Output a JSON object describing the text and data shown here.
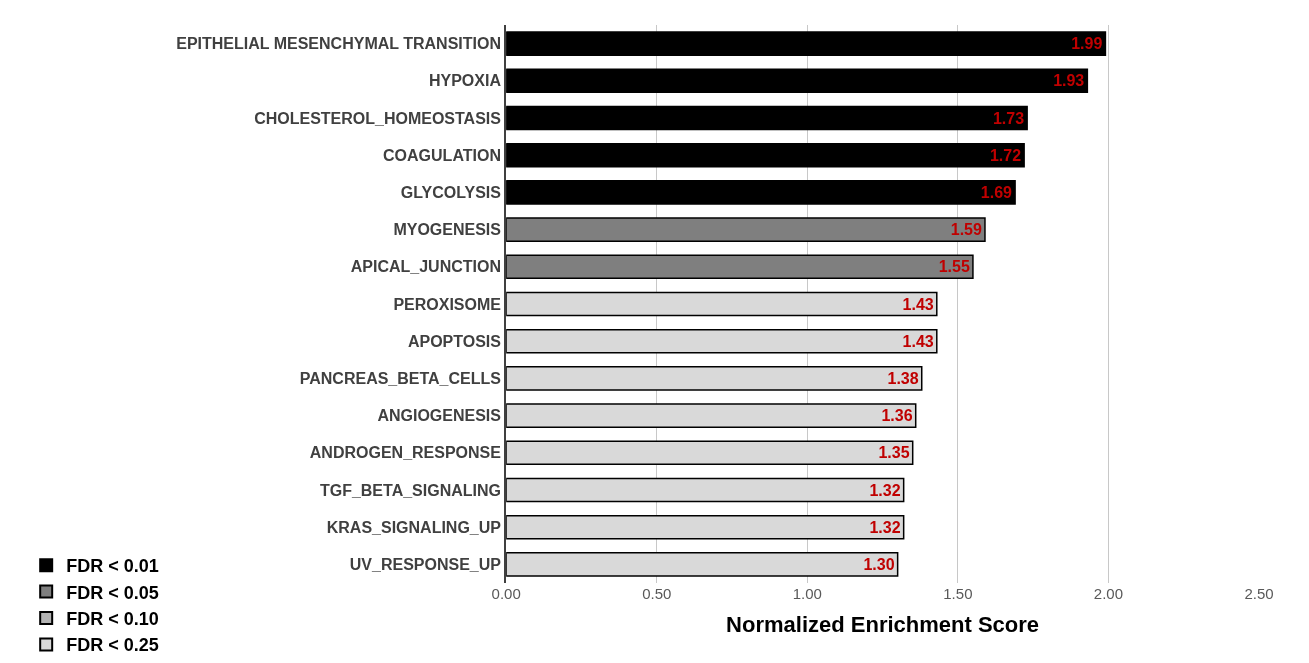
{
  "chart_data": {
    "type": "bar",
    "orientation": "horizontal",
    "xlabel": "Normalized Enrichment Score",
    "categories": [
      "EPITHELIAL MESENCHYMAL TRANSITION",
      "HYPOXIA",
      "CHOLESTEROL_HOMEOSTASIS",
      "COAGULATION",
      "GLYCOLYSIS",
      "MYOGENESIS",
      "APICAL_JUNCTION",
      "PEROXISOME",
      "APOPTOSIS",
      "PANCREAS_BETA_CELLS",
      "ANGIOGENESIS",
      "ANDROGEN_RESPONSE",
      "TGF_BETA_SIGNALING",
      "KRAS_SIGNALING_UP",
      "UV_RESPONSE_UP"
    ],
    "series": [
      {
        "name": "FDR < 0.01",
        "color": "#000000",
        "values": [
          1.99,
          1.93,
          1.73,
          1.72,
          1.69,
          null,
          null,
          null,
          null,
          null,
          null,
          null,
          null,
          null,
          null
        ],
        "value_labels": [
          "1.99",
          "1.93",
          "1.73",
          "1.72",
          "1.69",
          null,
          null,
          null,
          null,
          null,
          null,
          null,
          null,
          null,
          null
        ]
      },
      {
        "name": "FDR < 0.05",
        "color": "#7f7f7f",
        "values": [
          null,
          null,
          null,
          null,
          null,
          1.59,
          1.55,
          null,
          null,
          null,
          null,
          null,
          null,
          null,
          null
        ],
        "value_labels": [
          null,
          null,
          null,
          null,
          null,
          "1.59",
          "1.55",
          null,
          null,
          null,
          null,
          null,
          null,
          null,
          null
        ]
      },
      {
        "name": "FDR < 0.10",
        "color": "#b3b3b3",
        "values": [
          null,
          null,
          null,
          null,
          null,
          null,
          null,
          null,
          null,
          null,
          null,
          null,
          null,
          null,
          null
        ]
      },
      {
        "name": "FDR < 0.25",
        "color": "#d9d9d9",
        "values": [
          null,
          null,
          null,
          null,
          null,
          null,
          null,
          1.43,
          1.43,
          1.38,
          1.36,
          1.35,
          1.32,
          1.32,
          1.3
        ],
        "value_labels": [
          null,
          null,
          null,
          null,
          null,
          null,
          null,
          "1.43",
          "1.43",
          "1.38",
          "1.36",
          "1.35",
          "1.32",
          "1.32",
          "1.30"
        ]
      }
    ],
    "xlim": [
      0,
      2.5
    ],
    "xticks": [
      {
        "value": 0,
        "label": "0.00"
      },
      {
        "value": 0.5,
        "label": "0.50"
      },
      {
        "value": 1,
        "label": "1.00"
      },
      {
        "value": 1.5,
        "label": "1.50"
      },
      {
        "value": 2,
        "label": "2.00"
      },
      {
        "value": 2.5,
        "label": "2.50"
      }
    ],
    "grid": "x",
    "legend": "bottom left"
  }
}
